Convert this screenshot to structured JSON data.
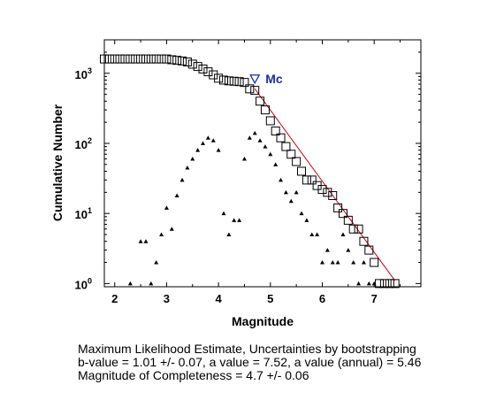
{
  "chart_data": {
    "type": "scatter",
    "title": "",
    "xlabel": "Magnitude",
    "ylabel": "Cumulative Number",
    "xlim": [
      1.8,
      7.9
    ],
    "ylim": [
      0.9,
      3000
    ],
    "yscale": "log",
    "x_ticks": [
      2,
      3,
      4,
      5,
      6,
      7
    ],
    "x_tick_labels": [
      "2",
      "3",
      "4",
      "5",
      "6",
      "7"
    ],
    "y_ticks": [
      1,
      10,
      100,
      1000
    ],
    "y_tick_labels": [
      {
        "base": "10",
        "exp": "0"
      },
      {
        "base": "10",
        "exp": "1"
      },
      {
        "base": "10",
        "exp": "2"
      },
      {
        "base": "10",
        "exp": "3"
      }
    ],
    "grid": false,
    "series": [
      {
        "marker": "square",
        "color": "#000000",
        "x": [
          1.8,
          1.9,
          2.0,
          2.1,
          2.2,
          2.3,
          2.4,
          2.5,
          2.6,
          2.7,
          2.8,
          2.9,
          3.0,
          3.1,
          3.2,
          3.3,
          3.4,
          3.5,
          3.6,
          3.7,
          3.8,
          3.9,
          4.0,
          4.1,
          4.2,
          4.3,
          4.4,
          4.5,
          4.6,
          4.7,
          4.8,
          4.9,
          5.0,
          5.1,
          5.2,
          5.3,
          5.4,
          5.5,
          5.6,
          5.7,
          5.8,
          5.9,
          6.0,
          6.1,
          6.2,
          6.3,
          6.4,
          6.5,
          6.6,
          6.7,
          6.8,
          6.9,
          7.0,
          7.1,
          7.2,
          7.3,
          7.4
        ],
        "y": [
          1600,
          1600,
          1600,
          1600,
          1600,
          1600,
          1600,
          1600,
          1600,
          1600,
          1600,
          1600,
          1600,
          1560,
          1530,
          1500,
          1450,
          1350,
          1250,
          1150,
          1050,
          950,
          850,
          800,
          780,
          770,
          760,
          740,
          600,
          570,
          400,
          300,
          210,
          150,
          120,
          90,
          70,
          55,
          40,
          30,
          30,
          25,
          22,
          20,
          18,
          12,
          10,
          8,
          6,
          6,
          4,
          3,
          2,
          1,
          1,
          1,
          1
        ]
      },
      {
        "marker": "triangle",
        "color": "#000000",
        "x": [
          2.3,
          2.5,
          2.6,
          2.7,
          2.8,
          2.9,
          3.0,
          3.1,
          3.2,
          3.3,
          3.4,
          3.5,
          3.6,
          3.7,
          3.8,
          3.9,
          4.0,
          4.1,
          4.2,
          4.3,
          4.4,
          4.5,
          4.6,
          4.7,
          4.8,
          4.9,
          5.0,
          5.1,
          5.2,
          5.3,
          5.4,
          5.5,
          5.6,
          5.7,
          5.8,
          5.9,
          6.0,
          6.1,
          6.2,
          6.3,
          6.4,
          6.5,
          6.6,
          6.7,
          6.8,
          6.9,
          7.0
        ],
        "y": [
          1,
          4,
          4,
          1,
          2,
          5,
          12,
          6,
          18,
          30,
          45,
          60,
          80,
          100,
          120,
          110,
          80,
          10,
          5,
          8,
          8,
          60,
          120,
          140,
          110,
          90,
          70,
          50,
          30,
          20,
          15,
          20,
          10,
          8,
          5,
          5,
          2,
          3,
          2,
          2,
          5,
          3,
          2,
          1,
          2,
          1,
          1
        ]
      }
    ],
    "fit_line": {
      "color": "#cc0000",
      "x": [
        4.7,
        7.4
      ],
      "y": [
        600,
        1.1
      ]
    },
    "mc_marker": {
      "x": 4.7,
      "y": 840,
      "label": "Mc",
      "color": "#1a2fb0"
    }
  },
  "caption": {
    "line1": "Maximum Likelihood Estimate, Uncertainties by bootstrapping",
    "line2": "b-value = 1.01 +/- 0.07,  a value = 7.52,  a value (annual) = 5.46",
    "line3": "Magnitude of Completeness = 4.7 +/- 0.06"
  }
}
